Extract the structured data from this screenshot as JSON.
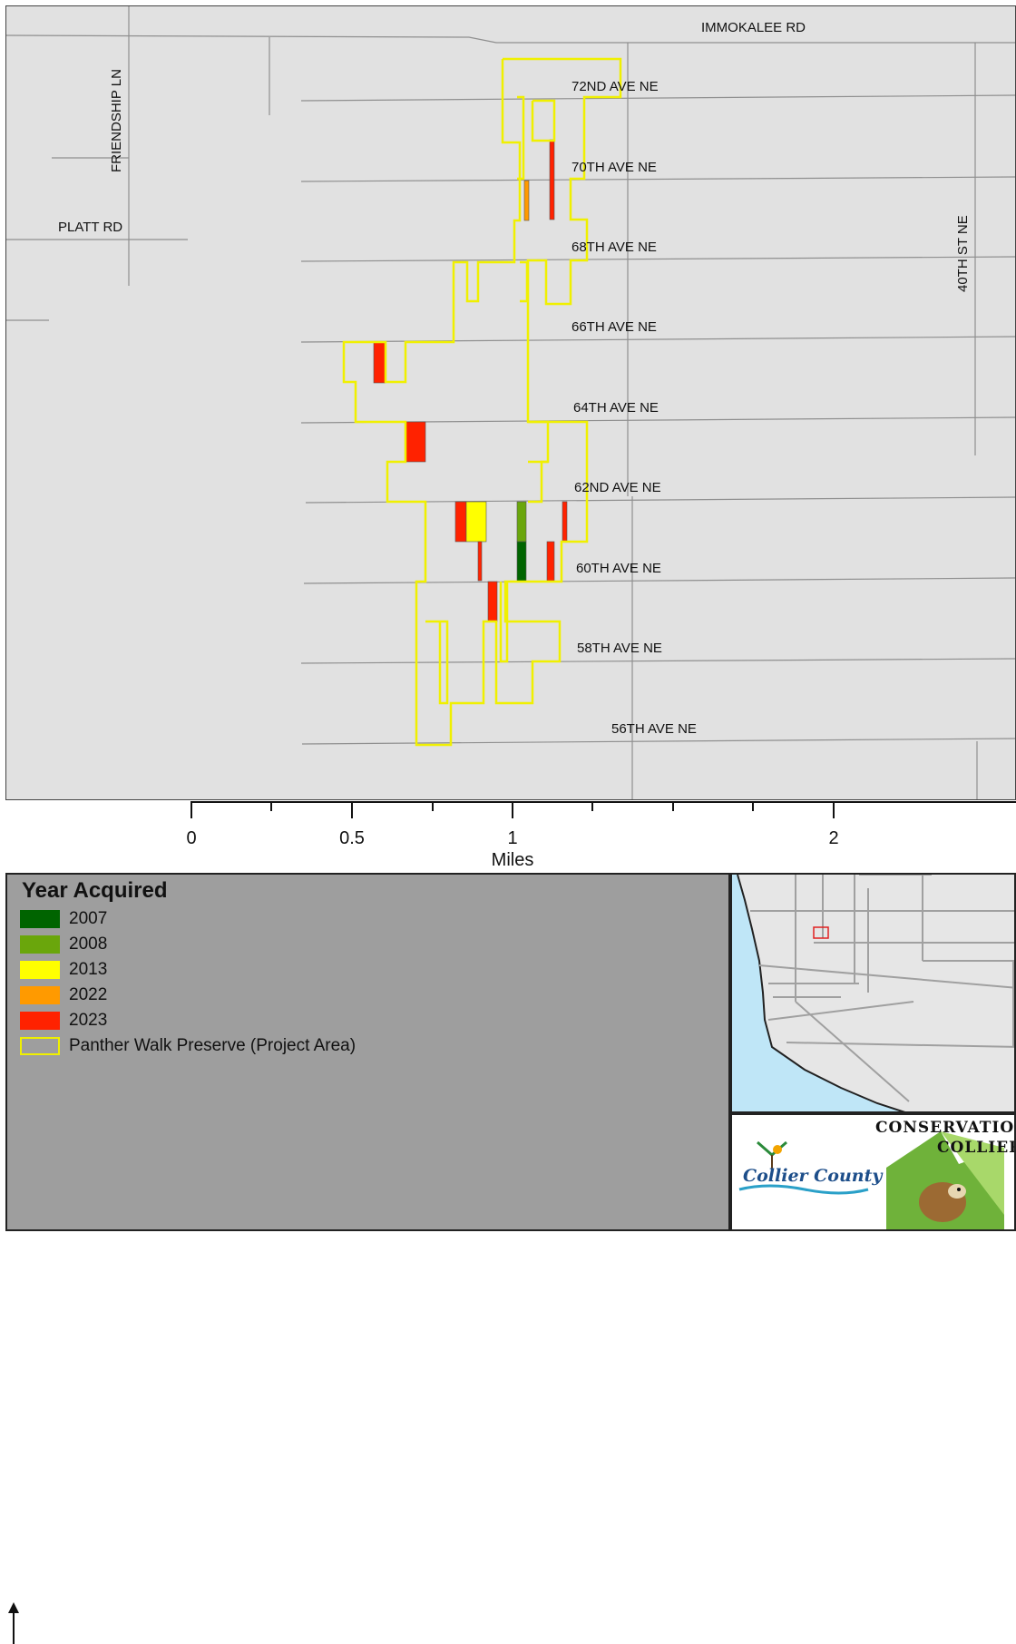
{
  "map": {
    "roads": {
      "immokalee": "IMMOKALEE RD",
      "friendship": "FRIENDSHIP LN",
      "platt": "PLATT RD",
      "st40": "40TH ST NE",
      "ave72": "72ND AVE NE",
      "ave70": "70TH AVE NE",
      "ave68": "68TH AVE NE",
      "ave66": "66TH AVE NE",
      "ave64": "64TH AVE NE",
      "ave62": "62ND AVE NE",
      "ave60": "60TH AVE NE",
      "ave58": "58TH AVE NE",
      "ave56": "56TH AVE NE"
    }
  },
  "scale": {
    "ticks": [
      "0",
      "0.5",
      "1",
      "2"
    ],
    "unit": "Miles"
  },
  "legend": {
    "title": "Year Acquired",
    "items": [
      {
        "label": "2007",
        "color": "#006400"
      },
      {
        "label": "2008",
        "color": "#6aa60c"
      },
      {
        "label": "2013",
        "color": "#ffff00"
      },
      {
        "label": "2022",
        "color": "#ff9a00"
      },
      {
        "label": "2023",
        "color": "#ff2200"
      },
      {
        "label": "Panther Walk Preserve (Project Area)",
        "color": "#f0f000",
        "outline": true
      }
    ]
  },
  "logos": {
    "collier": "Collier County",
    "conservation_1": "CONSERVATION",
    "conservation_2": "COLLIER"
  }
}
